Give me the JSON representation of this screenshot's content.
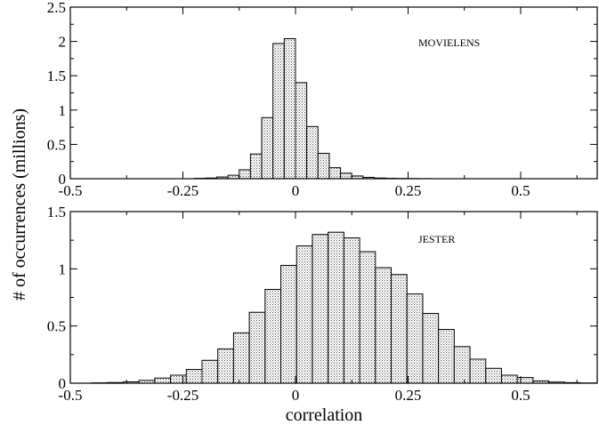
{
  "chart_data": [
    {
      "type": "bar",
      "annotation": "MOVIELENS",
      "bin_width": 0.025,
      "xlim": [
        -0.5,
        0.67
      ],
      "ylim": [
        0,
        2.5
      ],
      "x_ticks": [
        -0.5,
        -0.25,
        0,
        0.25,
        0.5
      ],
      "x_tick_labels": [
        "-0.5",
        "-0.25",
        "0",
        "0.25",
        "0.5"
      ],
      "y_ticks": [
        0,
        0.5,
        1,
        1.5,
        2,
        2.5
      ],
      "y_tick_labels": [
        "0",
        "0.5",
        "1",
        "1.5",
        "2",
        "2.5"
      ],
      "bin_centers": [
        -0.2125,
        -0.1875,
        -0.1625,
        -0.1375,
        -0.1125,
        -0.0875,
        -0.0625,
        -0.0375,
        -0.0125,
        0.0125,
        0.0375,
        0.0625,
        0.0875,
        0.1125,
        0.1375,
        0.1625,
        0.1875,
        0.2125,
        0.2375,
        0.2625,
        0.2875
      ],
      "values": [
        0.005,
        0.01,
        0.025,
        0.05,
        0.13,
        0.36,
        0.89,
        1.97,
        2.04,
        1.4,
        0.76,
        0.37,
        0.16,
        0.08,
        0.04,
        0.02,
        0.01,
        0.005,
        0.003,
        0.002,
        0.001
      ],
      "grid": false
    },
    {
      "type": "bar",
      "annotation": "JESTER",
      "bin_width": 0.035,
      "xlim": [
        -0.5,
        0.67
      ],
      "ylim": [
        0,
        1.5
      ],
      "x_ticks": [
        -0.5,
        -0.25,
        0,
        0.25,
        0.5
      ],
      "x_tick_labels": [
        "-0.5",
        "-0.25",
        "0",
        "0.25",
        "0.5"
      ],
      "y_ticks": [
        0,
        0.5,
        1,
        1.5
      ],
      "y_tick_labels": [
        "0",
        "0.5",
        "1",
        "1.5"
      ],
      "bin_centers": [
        -0.435,
        -0.4,
        -0.365,
        -0.33,
        -0.295,
        -0.26,
        -0.225,
        -0.19,
        -0.155,
        -0.12,
        -0.085,
        -0.05,
        -0.015,
        0.02,
        0.055,
        0.09,
        0.125,
        0.16,
        0.195,
        0.23,
        0.265,
        0.3,
        0.335,
        0.37,
        0.405,
        0.44,
        0.475,
        0.51,
        0.545,
        0.58,
        0.615,
        0.65
      ],
      "values": [
        0.003,
        0.006,
        0.012,
        0.025,
        0.045,
        0.07,
        0.12,
        0.2,
        0.3,
        0.44,
        0.62,
        0.82,
        1.03,
        1.2,
        1.3,
        1.32,
        1.27,
        1.15,
        1.01,
        0.95,
        0.78,
        0.61,
        0.47,
        0.32,
        0.21,
        0.13,
        0.07,
        0.05,
        0.02,
        0.01,
        0.005,
        0.002
      ],
      "grid": false
    }
  ],
  "xlabel": "correlation",
  "ylabel": "# of occurrences (millions)"
}
